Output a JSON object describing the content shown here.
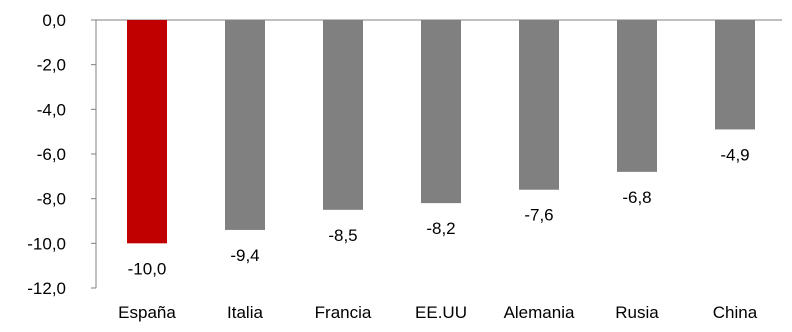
{
  "chart_data": {
    "type": "bar",
    "categories": [
      "España",
      "Italia",
      "Francia",
      "EE.UU",
      "Alemania",
      "Rusia",
      "China"
    ],
    "values": [
      -10.0,
      -9.4,
      -8.5,
      -8.2,
      -7.6,
      -6.8,
      -4.9
    ],
    "value_labels": [
      "-10,0",
      "-9,4",
      "-8,5",
      "-8,2",
      "-7,6",
      "-6,8",
      "-4,9"
    ],
    "bar_colors": [
      "#c00000",
      "#808080",
      "#808080",
      "#808080",
      "#808080",
      "#808080",
      "#808080"
    ],
    "yticks": [
      0,
      -2,
      -4,
      -6,
      -8,
      -10,
      -12
    ],
    "ytick_labels": [
      "0,0",
      "-2,0",
      "-4,0",
      "-6,0",
      "-8,0",
      "-10,0",
      "-12,0"
    ],
    "ylim": [
      -12,
      0
    ],
    "title": "",
    "xlabel": "",
    "ylabel": "",
    "grid": false,
    "legend": false
  }
}
